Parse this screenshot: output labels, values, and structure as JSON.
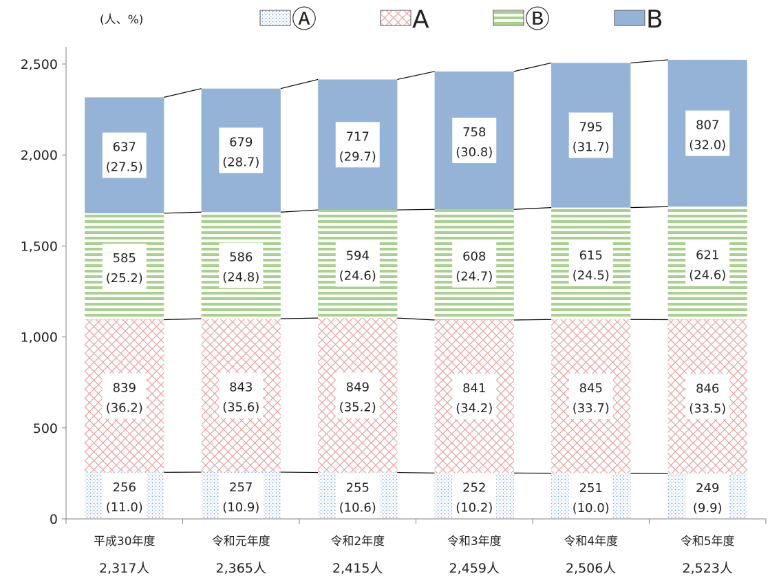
{
  "chart_data": {
    "type": "bar",
    "stacked": true,
    "unit_label": "(人、%)",
    "categories": [
      "平成30年度",
      "令和元年度",
      "令和2年度",
      "令和3年度",
      "令和4年度",
      "令和5年度"
    ],
    "totals": [
      "2,317人",
      "2,365人",
      "2,415人",
      "2,459人",
      "2,506人",
      "2,523人"
    ],
    "series": [
      {
        "name": "Ⓐ",
        "values": [
          256,
          257,
          255,
          252,
          251,
          249
        ],
        "labels": [
          "256",
          "257",
          "255",
          "252",
          "251",
          "249"
        ],
        "shares": [
          "(11.0)",
          "(10.9)",
          "(10.6)",
          "(10.2)",
          "(10.0)",
          "(9.9)"
        ],
        "color": "#9DC3E6",
        "pattern": "dots"
      },
      {
        "name": "A",
        "values": [
          839,
          843,
          849,
          841,
          845,
          846
        ],
        "labels": [
          "839",
          "843",
          "849",
          "841",
          "845",
          "846"
        ],
        "shares": [
          "(36.2)",
          "(35.6)",
          "(35.2)",
          "(34.2)",
          "(33.7)",
          "(33.5)"
        ],
        "color": "#E8A0A0",
        "pattern": "crosshatch"
      },
      {
        "name": "Ⓑ",
        "values": [
          585,
          586,
          594,
          608,
          615,
          621
        ],
        "labels": [
          "585",
          "586",
          "594",
          "608",
          "615",
          "621"
        ],
        "shares": [
          "(25.2)",
          "(24.8)",
          "(24.6)",
          "(24.7)",
          "(24.5)",
          "(24.6)"
        ],
        "color": "#A9D18E",
        "pattern": "horizontal-stripes"
      },
      {
        "name": "B",
        "values": [
          637,
          679,
          717,
          758,
          795,
          807
        ],
        "labels": [
          "637",
          "679",
          "717",
          "758",
          "795",
          "807"
        ],
        "shares": [
          "(27.5)",
          "(28.7)",
          "(29.7)",
          "(30.8)",
          "(31.7)",
          "(32.0)"
        ],
        "color": "#95B3D7",
        "pattern": "solid"
      }
    ],
    "ylim": [
      0,
      2500
    ],
    "yticks": [
      0,
      500,
      1000,
      1500,
      2000,
      2500
    ],
    "ytick_labels": [
      "0",
      "500",
      "1,000",
      "1,500",
      "2,000",
      "2,500"
    ],
    "legend_position": "top",
    "grid": false,
    "connector_lines": true
  }
}
